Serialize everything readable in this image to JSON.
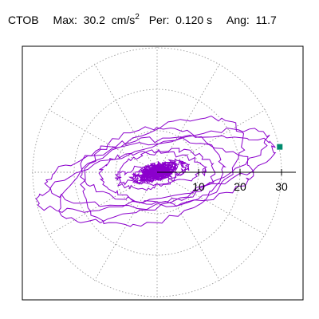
{
  "header": {
    "station": "CTOB",
    "max_label": "Max:",
    "max_value": "30.2",
    "max_unit_base": "cm/s",
    "max_unit_exp": "2",
    "per_label": "Per:",
    "per_value": "0.120 s",
    "ang_label": "Ang:",
    "ang_value": "11.7"
  },
  "chart_data": {
    "type": "polar-orbit",
    "ticks": [
      10,
      20,
      30
    ],
    "tick_labels": [
      "10",
      "20",
      "30"
    ],
    "rlim": [
      0,
      30.2
    ],
    "grid": true,
    "angular_grid_deg": [
      0,
      30,
      60,
      90,
      120,
      150,
      180,
      210,
      240,
      270,
      300,
      330
    ],
    "series_color": "#8b00cc",
    "marker_color": "#008b6e",
    "max_value": 30.2,
    "max_angle_deg": 11.7
  }
}
